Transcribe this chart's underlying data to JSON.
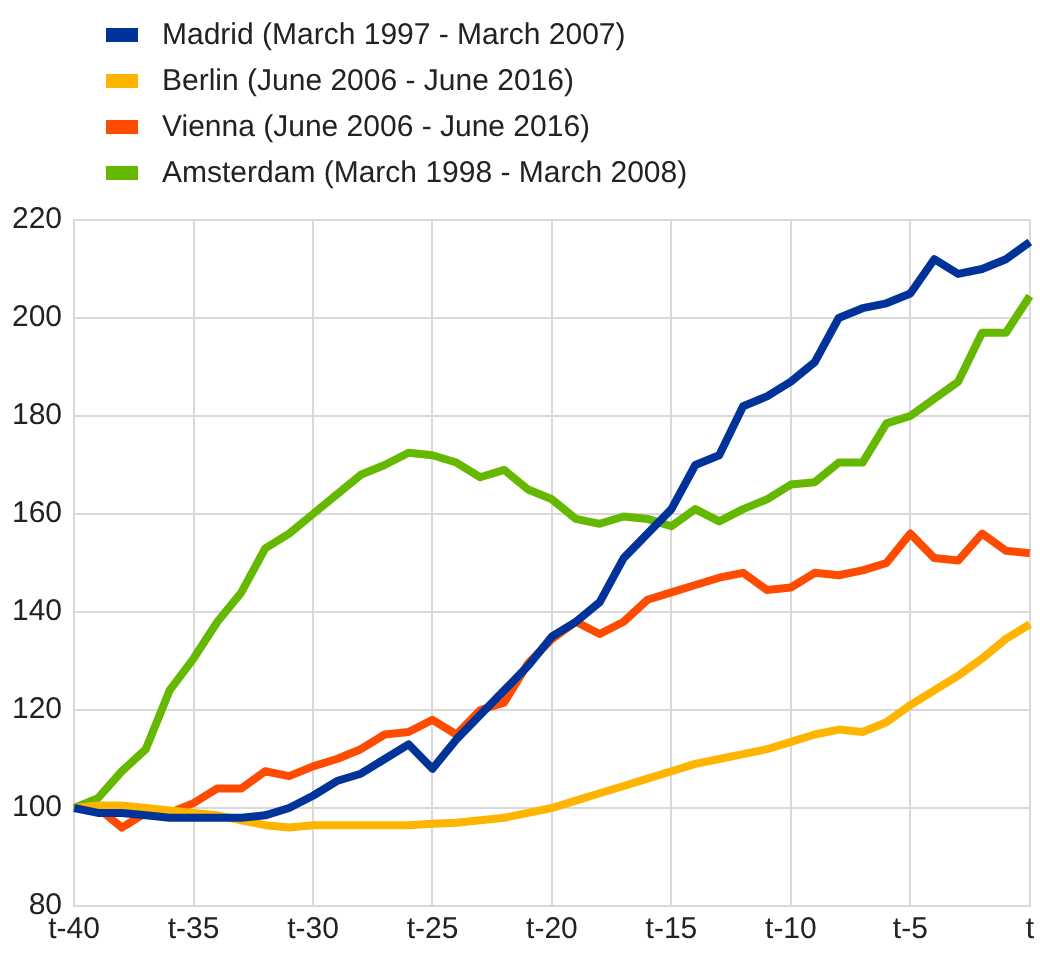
{
  "chart_data": {
    "type": "line",
    "categories": [
      "t-40",
      null,
      null,
      null,
      null,
      "t-35",
      null,
      null,
      null,
      null,
      "t-30",
      null,
      null,
      null,
      null,
      "t-25",
      null,
      null,
      null,
      null,
      "t-20",
      null,
      null,
      null,
      null,
      "t-15",
      null,
      null,
      null,
      null,
      "t-10",
      null,
      null,
      null,
      null,
      "t-5",
      null,
      null,
      null,
      null,
      "t"
    ],
    "series": [
      {
        "name": "Madrid (March 1997 - March 2007)",
        "color": "#003399",
        "values": [
          100,
          99,
          99,
          98.5,
          98,
          98,
          98,
          98,
          98.5,
          100,
          102.5,
          105.5,
          107,
          110,
          113,
          108,
          114,
          119,
          124,
          129,
          135,
          138,
          142,
          151,
          156,
          161,
          170,
          172,
          182,
          184,
          187,
          191,
          200,
          202,
          203,
          205,
          212,
          209,
          210,
          212,
          215.5
        ]
      },
      {
        "name": "Berlin (June 2006 - June 2016)",
        "color": "#ffb400",
        "values": [
          100,
          100.5,
          100.5,
          100,
          99.5,
          99,
          98.5,
          97.5,
          96.5,
          96,
          96.5,
          96.5,
          96.5,
          96.5,
          96.5,
          96.8,
          97,
          97.5,
          98,
          99,
          100,
          101.5,
          103,
          104.5,
          106,
          107.5,
          109,
          110,
          111,
          112,
          113.5,
          115,
          116,
          115.5,
          117.5,
          121,
          124,
          127,
          130.5,
          134.5,
          137.5
        ]
      },
      {
        "name": "Vienna (June 2006 - June 2016)",
        "color": "#ff4b00",
        "values": [
          100,
          100,
          96,
          99,
          99,
          101,
          104,
          104,
          107.5,
          106.5,
          108.5,
          110,
          112,
          115,
          115.5,
          118,
          115,
          120,
          121.5,
          129.5,
          134.5,
          138,
          135.5,
          138,
          142.5,
          144,
          145.5,
          147,
          148,
          144.5,
          145,
          148,
          147.5,
          148.5,
          150,
          156,
          151,
          150.5,
          156,
          152.5,
          152
        ]
      },
      {
        "name": "Amsterdam (March 1998 - March 2008)",
        "color": "#65b800",
        "values": [
          100,
          102,
          107.5,
          112,
          124,
          130.5,
          138,
          144,
          153,
          156,
          160,
          164,
          168,
          170,
          172.5,
          172,
          170.5,
          167.5,
          169,
          165,
          163,
          159,
          158,
          159.5,
          159,
          157.5,
          161,
          158.5,
          161,
          163,
          166,
          166.5,
          170.5,
          170.5,
          178.5,
          180,
          183.5,
          187,
          197,
          197,
          204.5
        ]
      }
    ],
    "ylim": [
      80,
      220
    ],
    "yticks": [
      80,
      100,
      120,
      140,
      160,
      180,
      200,
      220
    ],
    "grid": true,
    "legend": "top left"
  }
}
